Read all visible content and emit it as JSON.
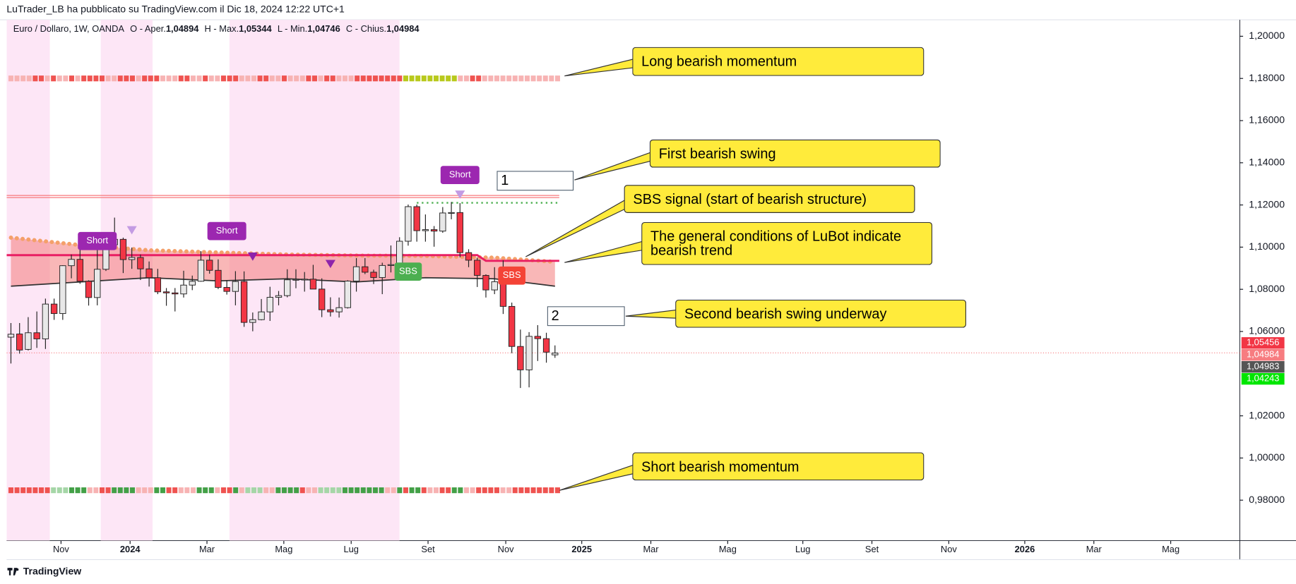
{
  "header": {
    "text": "LuTrader_LB ha pubblicato su TradingView.com il Dic 18, 2024 12:22 UTC+1"
  },
  "footer": {
    "brand": "TradingView"
  },
  "chart_data": {
    "type": "candlestick",
    "legend": {
      "symbol": "Euro / Dollaro, 1W, OANDA",
      "fields": [
        {
          "name": "O - Aper.",
          "value": "1,04894"
        },
        {
          "name": "H - Max.",
          "value": "1,05344"
        },
        {
          "name": "L - Min.",
          "value": "1,04746"
        },
        {
          "name": "C - Chius.",
          "value": "1,04984"
        }
      ]
    },
    "open": [
      1.0573,
      1.0588,
      1.0515,
      1.0594,
      1.0565,
      1.073,
      1.0685,
      1.0912,
      1.0942,
      1.0838,
      1.0761,
      1.0895,
      1.1011,
      1.1037,
      1.0941,
      1.0951,
      1.0897,
      1.0855,
      1.0788,
      1.0783,
      1.0778,
      1.082,
      1.0838,
      1.0938,
      1.089,
      1.0809,
      1.079,
      1.0837,
      1.0643,
      1.0656,
      1.0693,
      1.0762,
      1.077,
      1.0845,
      1.0847,
      1.0848,
      1.0801,
      1.0703,
      1.0693,
      1.0713,
      1.0839,
      1.0907,
      1.0881,
      1.0856,
      1.0913,
      1.0917,
      1.1028,
      1.1192,
      1.1078,
      1.1083,
      1.1076,
      1.1162,
      1.1164,
      1.0974,
      1.0938,
      1.0866,
      1.0797,
      1.0836,
      1.0719,
      1.0529,
      1.0418,
      1.0577,
      1.0566,
      1.0489
    ],
    "high": [
      1.064,
      1.064,
      1.0668,
      1.0695,
      1.0756,
      1.0756,
      1.0914,
      1.0965,
      1.1017,
      1.0843,
      1.1009,
      1.104,
      1.114,
      1.1045,
      1.0998,
      1.0965,
      1.0932,
      1.0897,
      1.0806,
      1.0806,
      1.0888,
      1.0865,
      1.0981,
      1.0964,
      1.0942,
      1.0843,
      1.0886,
      1.0885,
      1.069,
      1.0754,
      1.0812,
      1.0792,
      1.0895,
      1.0895,
      1.0882,
      1.0916,
      1.0852,
      1.0762,
      1.0761,
      1.0843,
      1.0948,
      1.0948,
      1.0893,
      1.0926,
      1.1008,
      1.1047,
      1.1202,
      1.1202,
      1.1155,
      1.11,
      1.119,
      1.1214,
      1.1209,
      1.099,
      1.095,
      1.0871,
      1.0905,
      1.0937,
      1.0737,
      1.0609,
      1.0597,
      1.063,
      1.0594,
      1.0534
    ],
    "low": [
      1.0448,
      1.0495,
      1.051,
      1.0522,
      1.0517,
      1.0655,
      1.0655,
      1.0852,
      1.0826,
      1.0723,
      1.0724,
      1.0887,
      1.1002,
      1.0877,
      1.0897,
      1.0844,
      1.0813,
      1.0777,
      1.0722,
      1.0695,
      1.0761,
      1.0796,
      1.0836,
      1.0874,
      1.0801,
      1.0775,
      1.0724,
      1.0622,
      1.0601,
      1.0653,
      1.065,
      1.0724,
      1.0762,
      1.0805,
      1.0789,
      1.0801,
      1.0668,
      1.0671,
      1.0666,
      1.0709,
      1.0789,
      1.0872,
      1.0825,
      1.0777,
      1.088,
      1.0907,
      1.1007,
      1.1026,
      1.1026,
      1.1002,
      1.1068,
      1.1132,
      1.0952,
      1.0905,
      1.0811,
      1.0761,
      1.0777,
      1.0683,
      1.0497,
      1.0332,
      1.0335,
      1.046,
      1.0452,
      1.0475
    ],
    "close": [
      1.0587,
      1.0512,
      1.0594,
      1.0565,
      1.073,
      1.0685,
      1.0912,
      1.0942,
      1.0838,
      1.0761,
      1.0895,
      1.1011,
      1.1037,
      1.0941,
      1.0951,
      1.0897,
      1.0855,
      1.0788,
      1.0783,
      1.0778,
      1.082,
      1.0838,
      1.0938,
      1.089,
      1.0809,
      1.079,
      1.0837,
      1.0643,
      1.0656,
      1.0693,
      1.0762,
      1.077,
      1.0845,
      1.0847,
      1.0848,
      1.0801,
      1.0703,
      1.0693,
      1.0713,
      1.0839,
      1.0907,
      1.0881,
      1.0856,
      1.0913,
      1.0917,
      1.1028,
      1.1192,
      1.1078,
      1.1083,
      1.1076,
      1.1162,
      1.1164,
      1.0974,
      1.0938,
      1.0866,
      1.0797,
      1.0836,
      1.0719,
      1.0529,
      1.0418,
      1.0577,
      1.0566,
      1.0502,
      1.0498
    ],
    "up_color": "#e8e8e8",
    "down_color": "#f23645",
    "xlim": [
      -0.5,
      142.3
    ],
    "xticks": [
      {
        "value": 5.8,
        "label": "Nov"
      },
      {
        "value": 13.8,
        "label": "2024"
      },
      {
        "value": 22.7,
        "label": "Mar"
      },
      {
        "value": 31.6,
        "label": "Mag"
      },
      {
        "value": 39.4,
        "label": "Lug"
      },
      {
        "value": 48.3,
        "label": "Set"
      },
      {
        "value": 57.3,
        "label": "Nov"
      },
      {
        "value": 66.1,
        "label": "2025"
      },
      {
        "value": 74.1,
        "label": "Mar"
      },
      {
        "value": 83.0,
        "label": "Mag"
      },
      {
        "value": 91.7,
        "label": "Lug"
      },
      {
        "value": 99.7,
        "label": "Set"
      },
      {
        "value": 108.6,
        "label": "Nov"
      },
      {
        "value": 117.4,
        "label": "2026"
      },
      {
        "value": 125.4,
        "label": "Mar"
      },
      {
        "value": 134.3,
        "label": "Mag"
      }
    ],
    "ylim": [
      0.9608,
      1.2078
    ],
    "yticks": [
      {
        "value": 1.2,
        "label": "1,20000"
      },
      {
        "value": 1.18,
        "label": "1,18000"
      },
      {
        "value": 1.16,
        "label": "1,16000"
      },
      {
        "value": 1.14,
        "label": "1,14000"
      },
      {
        "value": 1.12,
        "label": "1,12000"
      },
      {
        "value": 1.1,
        "label": "1,10000"
      },
      {
        "value": 1.08,
        "label": "1,08000"
      },
      {
        "value": 1.06,
        "label": "1,06000"
      },
      {
        "value": 1.02,
        "label": "1,02000"
      },
      {
        "value": 1,
        "label": "1,00000"
      },
      {
        "value": 0.98,
        "label": "0,98000"
      }
    ],
    "highlight_ranges": [
      [
        -0.5,
        4.5
      ],
      [
        10.4,
        16.4
      ],
      [
        25.3,
        45
      ]
    ],
    "highlight_color": "#fde6f6",
    "band": {
      "x": [
        0,
        8,
        16,
        24,
        32,
        40,
        48,
        56,
        63
      ],
      "upper": [
        1.1045,
        1.101,
        1.0985,
        1.0975,
        1.0965,
        1.096,
        1.0958,
        1.095,
        1.093
      ],
      "lower": [
        1.0815,
        1.0835,
        1.0855,
        1.084,
        1.085,
        1.0835,
        1.0855,
        1.085,
        1.0815
      ],
      "fill": "#f47c7c",
      "upper_color": "#f4a06a",
      "lower_color": "#333333"
    },
    "lines": [
      {
        "x": [
          -0.5,
          54,
          55,
          63.5
        ],
        "values": [
          1.0962,
          1.0962,
          1.0935,
          1.0935
        ],
        "color": "#e91e63"
      }
    ],
    "levels": [
      {
        "value": 1.1245,
        "from": -0.5,
        "to": 63.5,
        "color": "#f7787c",
        "dash": false
      },
      {
        "value": 1.1235,
        "from": -0.5,
        "to": 63.5,
        "color": "#f7787c",
        "dash": false
      },
      {
        "value": 1.121,
        "from": 47,
        "to": 63.5,
        "color": "#4caf50",
        "dash": true
      }
    ],
    "signals": [
      {
        "index": 10,
        "price": 1.1029,
        "text": "Short",
        "color": "#9c27b0"
      },
      {
        "index": 25,
        "price": 1.1076,
        "text": "Short",
        "color": "#9c27b0"
      },
      {
        "index": 52,
        "price": 1.1342,
        "text": "Short",
        "color": "#9c27b0"
      },
      {
        "index": 46,
        "price": 1.0884,
        "text": "SBS",
        "color": "#4caf50"
      },
      {
        "index": 58,
        "price": 1.0865,
        "text": "SBS",
        "color": "#f44336"
      }
    ],
    "triangles": [
      {
        "index": 14,
        "price": 1.108,
        "color": "#c39be3"
      },
      {
        "index": 28,
        "price": 1.0955,
        "color": "#8e24aa"
      },
      {
        "index": 37,
        "price": 1.092,
        "color": "#8e24aa"
      },
      {
        "index": 52,
        "price": 1.1249,
        "color": "#c39be3"
      }
    ],
    "long_momentum": {
      "price": 1.18,
      "colors": [
        "#f7b3b3",
        "#f7b3b3",
        "#f7b3b3",
        "#f7b3b3",
        "#ef5350",
        "#ef5350",
        "#f7b3b3",
        "#ef5350",
        "#f7b3b3",
        "#f7b3b3",
        "#ef5350",
        "#f7b3b3",
        "#ef5350",
        "#ef5350",
        "#ef5350",
        "#ef5350",
        "#f7b3b3",
        "#f7b3b3",
        "#ef5350",
        "#ef5350",
        "#ef5350",
        "#f7b3b3",
        "#ef5350",
        "#ef5350",
        "#ef5350",
        "#f7b3b3",
        "#f7b3b3",
        "#f7b3b3",
        "#ef5350",
        "#ef5350",
        "#f7b3b3",
        "#f7b3b3",
        "#ef5350",
        "#f7b3b3",
        "#f7b3b3",
        "#ef5350",
        "#ef5350",
        "#ef5350",
        "#f7b3b3",
        "#f7b3b3",
        "#f7b3b3",
        "#ef5350",
        "#ef5350",
        "#f7b3b3",
        "#f7b3b3",
        "#ef5350",
        "#f7b3b3",
        "#f7b3b3",
        "#f7b3b3",
        "#ef5350",
        "#ef5350",
        "#f7b3b3",
        "#ef5350",
        "#ef5350",
        "#f7b3b3",
        "#f7b3b3",
        "#f7b3b3",
        "#ef5350",
        "#ef5350",
        "#ef5350",
        "#ef5350",
        "#ef5350",
        "#ef5350",
        "#ef5350",
        "#ef5350",
        "#b8c91c",
        "#b8c91c",
        "#b8c91c",
        "#b8c91c",
        "#b8c91c",
        "#b8c91c",
        "#b8c91c",
        "#b8c91c",
        "#b8c91c",
        "#f7b3b3",
        "#f7b3b3",
        "#ef5350",
        "#ef5350",
        "#f7b3b3",
        "#f7b3b3",
        "#f7b3b3",
        "#f7b3b3",
        "#f7b3b3",
        "#f7b3b3",
        "#f7b3b3",
        "#f7b3b3",
        "#f7b3b3",
        "#f7b3b3",
        "#f7b3b3",
        "#f7b3b3",
        "#f7b3b3"
      ]
    },
    "short_momentum": {
      "price": 0.9847,
      "colors": [
        "#ef5350",
        "#ef5350",
        "#ef5350",
        "#ef5350",
        "#ef5350",
        "#ef5350",
        "#ef5350",
        "#a5d6a7",
        "#a5d6a7",
        "#a5d6a7",
        "#43a047",
        "#43a047",
        "#43a047",
        "#f7b3b3",
        "#f7b3b3",
        "#ef5350",
        "#ef5350",
        "#43a047",
        "#43a047",
        "#43a047",
        "#43a047",
        "#f7b3b3",
        "#f7b3b3",
        "#f7b3b3",
        "#43a047",
        "#43a047",
        "#ef5350",
        "#ef5350",
        "#f7b3b3",
        "#f7b3b3",
        "#f7b3b3",
        "#43a047",
        "#43a047",
        "#43a047",
        "#f7b3b3",
        "#ef5350",
        "#ef5350",
        "#43a047",
        "#f7b3b3",
        "#a5d6a7",
        "#a5d6a7",
        "#a5d6a7",
        "#f7b3b3",
        "#f7b3b3",
        "#43a047",
        "#43a047",
        "#43a047",
        "#43a047",
        "#ef5350",
        "#f7b3b3",
        "#f7b3b3",
        "#a5d6a7",
        "#a5d6a7",
        "#a5d6a7",
        "#a5d6a7",
        "#43a047",
        "#43a047",
        "#43a047",
        "#43a047",
        "#43a047",
        "#43a047",
        "#43a047",
        "#f7b3b3",
        "#f7b3b3",
        "#43a047",
        "#ef5350",
        "#43a047",
        "#43a047",
        "#ef5350",
        "#f7b3b3",
        "#f7b3b3",
        "#ef5350",
        "#ef5350",
        "#43a047",
        "#43a047",
        "#f7b3b3",
        "#f7b3b3",
        "#ef5350",
        "#ef5350",
        "#ef5350",
        "#ef5350",
        "#f7b3b3",
        "#f7b3b3",
        "#ef5350",
        "#ef5350",
        "#ef5350",
        "#ef5350",
        "#ef5350",
        "#ef5350",
        "#ef5350",
        "#ef5350"
      ]
    },
    "price_tags": [
      {
        "value": 1.05456,
        "label": "1,05456",
        "color": "#f23645"
      },
      {
        "value": 1.04984,
        "label": "1,04984",
        "color": "#f77c80"
      },
      {
        "value": 1.04983,
        "label": "1,04983",
        "color": "#555555"
      },
      {
        "value": 1.04243,
        "label": "1,04243",
        "color": "#00e600"
      }
    ],
    "annotations": [
      "Long bearish momentum",
      "First bearish swing",
      "SBS signal (start of bearish structure)",
      "The general conditions of LuBot indicate bearish trend",
      "Second bearish swing underway",
      "Short bearish momentum"
    ],
    "swing_labels": [
      "1",
      "2"
    ]
  }
}
